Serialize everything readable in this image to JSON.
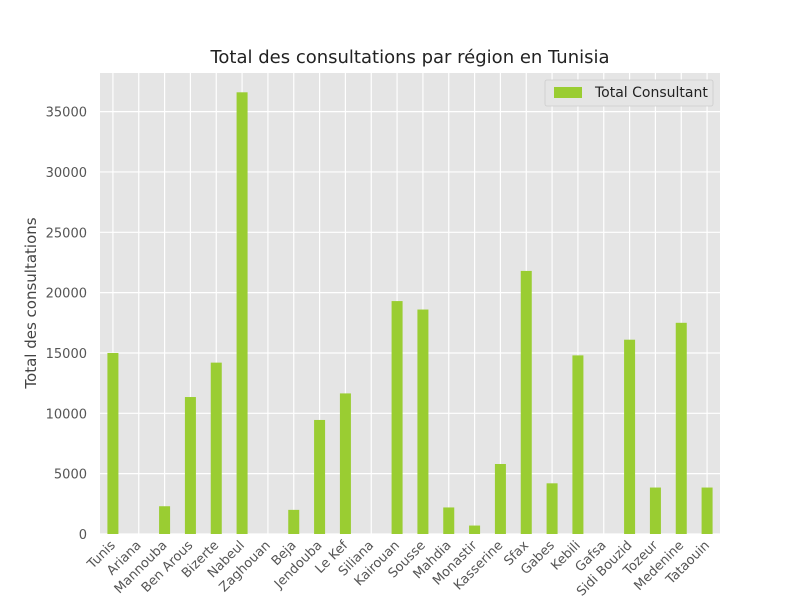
{
  "chart_data": {
    "type": "bar",
    "title": "Total des consultations par région en Tunisia",
    "xlabel": "",
    "ylabel": "Total des consultations",
    "categories": [
      "Tunis",
      "Ariana",
      "Mannouba",
      "Ben Arous",
      "Bizerte",
      "Nabeul",
      "Zaghouan",
      "Beja",
      "Jendouba",
      "Le Kef",
      "Siliana",
      "Kairouan",
      "Sousse",
      "Mahdia",
      "Monastir",
      "Kasserine",
      "Sfax",
      "Gabes",
      "Kebili",
      "Gafsa",
      "Sidi Bouzid",
      "Tozeur",
      "Medenine",
      "Tataouin"
    ],
    "series": [
      {
        "name": "Total Consultant",
        "color": "#9acd32",
        "values": [
          15000,
          0,
          2300,
          11350,
          14200,
          36600,
          0,
          2000,
          9450,
          11650,
          0,
          19300,
          18600,
          2200,
          700,
          5800,
          21800,
          4200,
          14800,
          0,
          16100,
          3850,
          17500,
          3850
        ]
      }
    ],
    "ylim": [
      0,
      38200
    ],
    "yticks": [
      0,
      5000,
      10000,
      15000,
      20000,
      25000,
      30000,
      35000
    ],
    "ytick_labels": [
      "0",
      "5000",
      "10000",
      "15000",
      "20000",
      "25000",
      "30000",
      "35000"
    ],
    "grid": true,
    "legend_position": "top-right",
    "plot_background": "#e5e5e5",
    "grid_color": "#ffffff"
  }
}
